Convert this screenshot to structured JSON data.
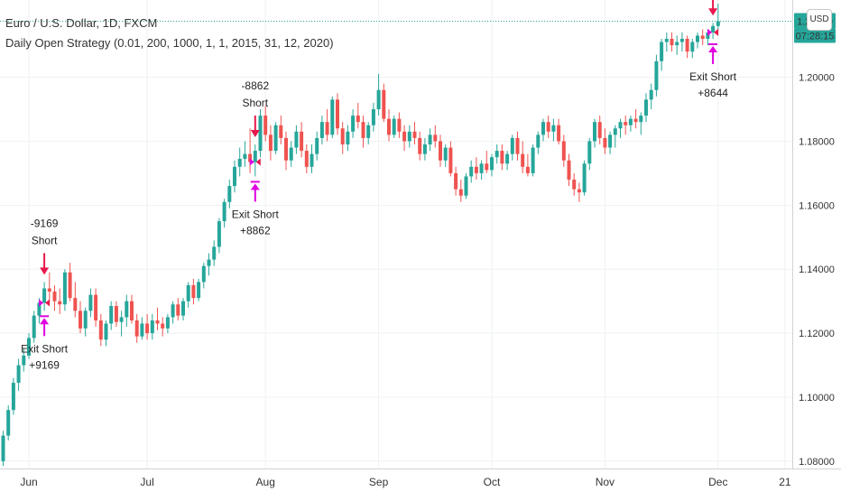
{
  "header": {
    "symbol": "Euro / U.S. Dollar, 1D, FXCM",
    "strategy": "Daily Open Strategy (0.01, 200, 1000, 1, 1, 2015, 31, 12, 2020)"
  },
  "currency_badge": "USD",
  "countdown": "07:28:15",
  "last_price": "1.21750",
  "colors": {
    "up": "#26a69a",
    "down": "#ef5350",
    "grid": "#eef1f3",
    "exit": "#e000e0",
    "short": "#e8174b",
    "last": "#26a69a"
  },
  "chart_data": {
    "type": "candlestick",
    "title": "Euro / U.S. Dollar, 1D, FXCM",
    "ylim": [
      1.078,
      1.223
    ],
    "y_ticks": [
      "1.08000",
      "1.10000",
      "1.12000",
      "1.14000",
      "1.16000",
      "1.18000",
      "1.20000"
    ],
    "y_tick_values": [
      1.08,
      1.1,
      1.12,
      1.14,
      1.16,
      1.18,
      1.2
    ],
    "x_ticks": [
      "Jun",
      "Jul",
      "Aug",
      "Sep",
      "Oct",
      "Nov",
      "Dec",
      "21"
    ],
    "x_tick_index": [
      5,
      28,
      51,
      73,
      95,
      117,
      139,
      152
    ],
    "candles": [
      [
        1.08,
        1.0895,
        1.0785,
        1.088
      ],
      [
        1.088,
        1.0975,
        1.0865,
        1.096
      ],
      [
        1.096,
        1.106,
        1.0945,
        1.1045
      ],
      [
        1.1045,
        1.112,
        1.102,
        1.11
      ],
      [
        1.11,
        1.115,
        1.108,
        1.113
      ],
      [
        1.113,
        1.12,
        1.112,
        1.1185
      ],
      [
        1.1185,
        1.127,
        1.117,
        1.1255
      ],
      [
        1.1255,
        1.131,
        1.123,
        1.1295
      ],
      [
        1.1295,
        1.136,
        1.127,
        1.134
      ],
      [
        1.134,
        1.139,
        1.13,
        1.133
      ],
      [
        1.133,
        1.135,
        1.127,
        1.13
      ],
      [
        1.13,
        1.134,
        1.126,
        1.129
      ],
      [
        1.129,
        1.14,
        1.127,
        1.139
      ],
      [
        1.139,
        1.142,
        1.13,
        1.131
      ],
      [
        1.131,
        1.136,
        1.125,
        1.127
      ],
      [
        1.127,
        1.13,
        1.12,
        1.1215
      ],
      [
        1.1215,
        1.128,
        1.119,
        1.127
      ],
      [
        1.127,
        1.134,
        1.125,
        1.132
      ],
      [
        1.132,
        1.134,
        1.122,
        1.124
      ],
      [
        1.124,
        1.126,
        1.116,
        1.118
      ],
      [
        1.118,
        1.124,
        1.116,
        1.123
      ],
      [
        1.123,
        1.13,
        1.121,
        1.1285
      ],
      [
        1.1285,
        1.13,
        1.122,
        1.1235
      ],
      [
        1.1235,
        1.127,
        1.119,
        1.125
      ],
      [
        1.125,
        1.132,
        1.122,
        1.13
      ],
      [
        1.13,
        1.132,
        1.123,
        1.124
      ],
      [
        1.124,
        1.126,
        1.117,
        1.119
      ],
      [
        1.119,
        1.125,
        1.118,
        1.123
      ],
      [
        1.123,
        1.126,
        1.118,
        1.12
      ],
      [
        1.12,
        1.126,
        1.118,
        1.124
      ],
      [
        1.124,
        1.128,
        1.121,
        1.123
      ],
      [
        1.123,
        1.125,
        1.119,
        1.1215
      ],
      [
        1.1215,
        1.126,
        1.12,
        1.125
      ],
      [
        1.125,
        1.13,
        1.123,
        1.129
      ],
      [
        1.129,
        1.131,
        1.124,
        1.1255
      ],
      [
        1.1255,
        1.131,
        1.124,
        1.13
      ],
      [
        1.13,
        1.136,
        1.128,
        1.135
      ],
      [
        1.135,
        1.137,
        1.129,
        1.131
      ],
      [
        1.131,
        1.137,
        1.13,
        1.136
      ],
      [
        1.136,
        1.142,
        1.134,
        1.141
      ],
      [
        1.141,
        1.145,
        1.138,
        1.143
      ],
      [
        1.143,
        1.149,
        1.141,
        1.147
      ],
      [
        1.147,
        1.156,
        1.145,
        1.155
      ],
      [
        1.155,
        1.162,
        1.153,
        1.161
      ],
      [
        1.161,
        1.168,
        1.159,
        1.166
      ],
      [
        1.166,
        1.174,
        1.164,
        1.172
      ],
      [
        1.172,
        1.178,
        1.169,
        1.1745
      ],
      [
        1.1745,
        1.18,
        1.172,
        1.176
      ],
      [
        1.176,
        1.184,
        1.17,
        1.1735
      ],
      [
        1.1735,
        1.179,
        1.169,
        1.177
      ],
      [
        1.177,
        1.19,
        1.175,
        1.188
      ],
      [
        1.188,
        1.191,
        1.18,
        1.182
      ],
      [
        1.182,
        1.185,
        1.174,
        1.177
      ],
      [
        1.177,
        1.186,
        1.176,
        1.185
      ],
      [
        1.185,
        1.188,
        1.179,
        1.181
      ],
      [
        1.181,
        1.183,
        1.171,
        1.174
      ],
      [
        1.174,
        1.18,
        1.172,
        1.178
      ],
      [
        1.178,
        1.185,
        1.176,
        1.183
      ],
      [
        1.183,
        1.186,
        1.175,
        1.177
      ],
      [
        1.177,
        1.179,
        1.17,
        1.172
      ],
      [
        1.172,
        1.179,
        1.17,
        1.176
      ],
      [
        1.176,
        1.183,
        1.174,
        1.181
      ],
      [
        1.181,
        1.188,
        1.179,
        1.186
      ],
      [
        1.186,
        1.19,
        1.18,
        1.182
      ],
      [
        1.182,
        1.194,
        1.181,
        1.193
      ],
      [
        1.193,
        1.195,
        1.182,
        1.184
      ],
      [
        1.184,
        1.186,
        1.176,
        1.179
      ],
      [
        1.179,
        1.185,
        1.177,
        1.183
      ],
      [
        1.183,
        1.19,
        1.181,
        1.188
      ],
      [
        1.188,
        1.192,
        1.184,
        1.186
      ],
      [
        1.186,
        1.188,
        1.178,
        1.181
      ],
      [
        1.181,
        1.186,
        1.179,
        1.185
      ],
      [
        1.185,
        1.192,
        1.183,
        1.19
      ],
      [
        1.19,
        1.201,
        1.188,
        1.196
      ],
      [
        1.196,
        1.198,
        1.186,
        1.187
      ],
      [
        1.187,
        1.19,
        1.18,
        1.182
      ],
      [
        1.182,
        1.188,
        1.181,
        1.187
      ],
      [
        1.187,
        1.189,
        1.181,
        1.183
      ],
      [
        1.183,
        1.185,
        1.177,
        1.18
      ],
      [
        1.18,
        1.185,
        1.178,
        1.183
      ],
      [
        1.183,
        1.186,
        1.179,
        1.181
      ],
      [
        1.181,
        1.183,
        1.174,
        1.176
      ],
      [
        1.176,
        1.181,
        1.174,
        1.179
      ],
      [
        1.179,
        1.184,
        1.177,
        1.182
      ],
      [
        1.182,
        1.185,
        1.178,
        1.18
      ],
      [
        1.18,
        1.182,
        1.172,
        1.174
      ],
      [
        1.174,
        1.179,
        1.172,
        1.178
      ],
      [
        1.178,
        1.18,
        1.169,
        1.17
      ],
      [
        1.17,
        1.172,
        1.163,
        1.165
      ],
      [
        1.165,
        1.168,
        1.161,
        1.163
      ],
      [
        1.163,
        1.17,
        1.162,
        1.169
      ],
      [
        1.169,
        1.174,
        1.167,
        1.172
      ],
      [
        1.172,
        1.175,
        1.168,
        1.17
      ],
      [
        1.17,
        1.174,
        1.168,
        1.173
      ],
      [
        1.173,
        1.177,
        1.17,
        1.171
      ],
      [
        1.171,
        1.176,
        1.169,
        1.175
      ],
      [
        1.175,
        1.179,
        1.173,
        1.177
      ],
      [
        1.177,
        1.179,
        1.171,
        1.173
      ],
      [
        1.173,
        1.177,
        1.171,
        1.176
      ],
      [
        1.176,
        1.182,
        1.174,
        1.181
      ],
      [
        1.181,
        1.183,
        1.174,
        1.176
      ],
      [
        1.176,
        1.18,
        1.17,
        1.172
      ],
      [
        1.172,
        1.176,
        1.169,
        1.17
      ],
      [
        1.17,
        1.179,
        1.169,
        1.178
      ],
      [
        1.178,
        1.183,
        1.176,
        1.182
      ],
      [
        1.182,
        1.187,
        1.18,
        1.186
      ],
      [
        1.186,
        1.188,
        1.181,
        1.183
      ],
      [
        1.183,
        1.187,
        1.18,
        1.185
      ],
      [
        1.185,
        1.187,
        1.179,
        1.18
      ],
      [
        1.18,
        1.182,
        1.172,
        1.174
      ],
      [
        1.174,
        1.176,
        1.166,
        1.168
      ],
      [
        1.168,
        1.17,
        1.163,
        1.165
      ],
      [
        1.165,
        1.167,
        1.161,
        1.164
      ],
      [
        1.164,
        1.174,
        1.163,
        1.173
      ],
      [
        1.173,
        1.181,
        1.171,
        1.18
      ],
      [
        1.18,
        1.187,
        1.178,
        1.186
      ],
      [
        1.186,
        1.188,
        1.179,
        1.181
      ],
      [
        1.181,
        1.184,
        1.176,
        1.178
      ],
      [
        1.178,
        1.183,
        1.176,
        1.182
      ],
      [
        1.182,
        1.185,
        1.178,
        1.184
      ],
      [
        1.184,
        1.187,
        1.181,
        1.186
      ],
      [
        1.186,
        1.188,
        1.182,
        1.185
      ],
      [
        1.185,
        1.188,
        1.183,
        1.187
      ],
      [
        1.187,
        1.19,
        1.184,
        1.186
      ],
      [
        1.186,
        1.189,
        1.182,
        1.188
      ],
      [
        1.188,
        1.195,
        1.186,
        1.193
      ],
      [
        1.193,
        1.198,
        1.19,
        1.196
      ],
      [
        1.196,
        1.207,
        1.194,
        1.205
      ],
      [
        1.205,
        1.212,
        1.202,
        1.211
      ],
      [
        1.211,
        1.214,
        1.208,
        1.212
      ],
      [
        1.212,
        1.214,
        1.208,
        1.21
      ],
      [
        1.21,
        1.213,
        1.207,
        1.211
      ],
      [
        1.211,
        1.214,
        1.208,
        1.212
      ],
      [
        1.212,
        1.213,
        1.206,
        1.208
      ],
      [
        1.208,
        1.212,
        1.206,
        1.211
      ],
      [
        1.211,
        1.214,
        1.209,
        1.213
      ],
      [
        1.213,
        1.215,
        1.21,
        1.212
      ],
      [
        1.212,
        1.215,
        1.21,
        1.214
      ],
      [
        1.214,
        1.217,
        1.212,
        1.216
      ],
      [
        1.216,
        1.223,
        1.215,
        1.2175
      ]
    ],
    "annotations": [
      {
        "label": "-9169",
        "sub": "Short",
        "kind": "short",
        "index": 8
      },
      {
        "label": "Exit Short",
        "sub": "+9169",
        "kind": "exit",
        "index": 8
      },
      {
        "label": "-8862",
        "sub": "Short",
        "kind": "short",
        "index": 49
      },
      {
        "label": "Exit Short",
        "sub": "+8862",
        "kind": "exit",
        "index": 49
      },
      {
        "label": "-8644",
        "sub": "Short",
        "kind": "short",
        "index": 138
      },
      {
        "label": "Exit Short",
        "sub": "+8644",
        "kind": "exit",
        "index": 138
      }
    ]
  }
}
